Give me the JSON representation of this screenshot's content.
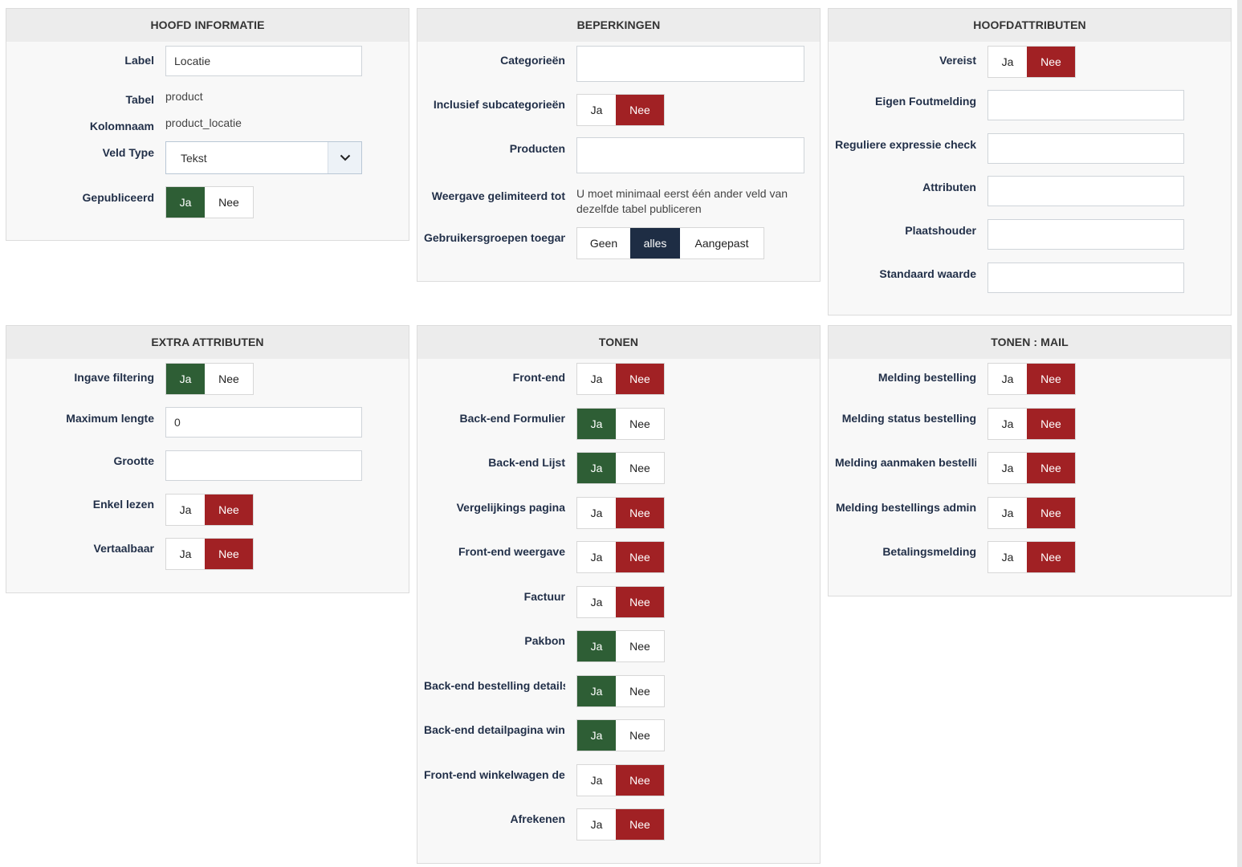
{
  "hoofd": {
    "title": "HOOFD INFORMATIE",
    "label_label": "Label",
    "label_value": "Locatie",
    "tabel_label": "Tabel",
    "tabel_value": "product",
    "kolom_label": "Kolomnaam",
    "kolom_value": "product_locatie",
    "veldtype_label": "Veld Type",
    "veldtype_value": "Tekst",
    "gepubliceerd_label": "Gepubliceerd"
  },
  "beperkingen": {
    "title": "BEPERKINGEN",
    "categorieen_label": "Categorieën",
    "subcat_label": "Inclusief subcategorieën",
    "producten_label": "Producten",
    "weergave_label": "Weergave gelimiteerd tot",
    "weergave_text": "U moet minimaal eerst één ander veld van dezelfde tabel publiceren",
    "groepen_label": "Gebruikersgroepen toegang",
    "groepen_options": [
      "Geen",
      "alles",
      "Aangepast"
    ]
  },
  "hoofdattr": {
    "title": "HOOFDATTRIBUTEN",
    "vereist_label": "Vereist",
    "fout_label": "Eigen Foutmelding",
    "regex_label": "Reguliere expressie check",
    "attributen_label": "Attributen",
    "plaats_label": "Plaatshouder",
    "standaard_label": "Standaard waarde"
  },
  "extra": {
    "title": "EXTRA ATTRIBUTEN",
    "filter_label": "Ingave filtering",
    "maxlen_label": "Maximum lengte",
    "maxlen_value": "0",
    "grootte_label": "Grootte",
    "lezen_label": "Enkel lezen",
    "vertaal_label": "Vertaalbaar"
  },
  "tonen": {
    "title": "TONEN",
    "rows": [
      "Front-end",
      "Back-end Formulier",
      "Back-end Lijst",
      "Vergelijkings pagina",
      "Front-end weergave",
      "Factuur",
      "Pakbon",
      "Back-end bestelling details",
      "Back-end detailpagina winkelwagen",
      "Front-end winkelwagen details",
      "Afrekenen"
    ]
  },
  "mail": {
    "title": "TONEN : MAIL",
    "rows": [
      "Melding bestelling",
      "Melding status bestelling",
      "Melding aanmaken bestelling",
      "Melding bestellings admin",
      "Betalingsmelding"
    ]
  },
  "toggle": {
    "ja": "Ja",
    "nee": "Nee"
  },
  "colors": {
    "ja_active": "#2e5e35",
    "nee_active": "#a12124",
    "selected": "#1e2d44"
  }
}
